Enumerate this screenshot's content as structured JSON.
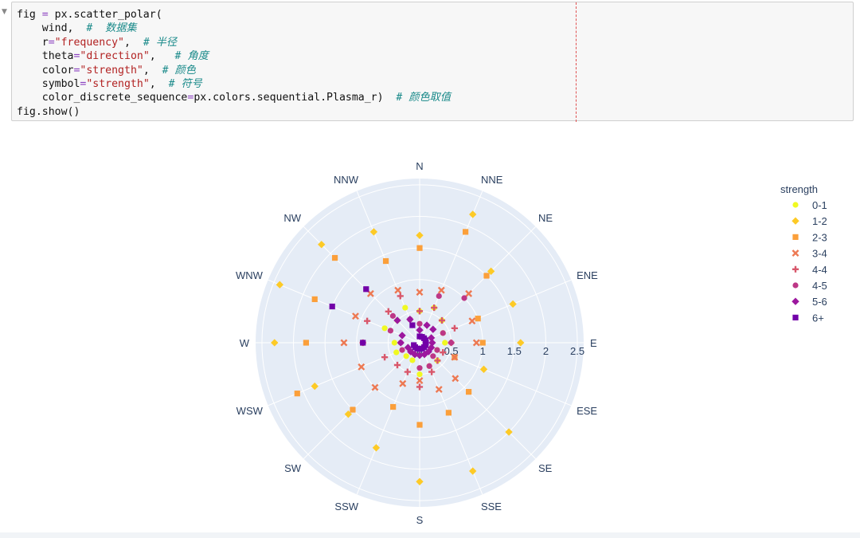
{
  "code": {
    "gutter_icon": "collapse-triangle-icon",
    "lines": [
      [
        {
          "t": "fig ",
          "k": ""
        },
        {
          "t": "=",
          "k": "o"
        },
        {
          "t": " px.scatter_polar(",
          "k": ""
        }
      ],
      [
        {
          "t": "    wind,  ",
          "k": ""
        },
        {
          "t": "#  数据集",
          "k": "c"
        }
      ],
      [
        {
          "t": "    r",
          "k": ""
        },
        {
          "t": "=",
          "k": "o"
        },
        {
          "t": "\"frequency\"",
          "k": "s"
        },
        {
          "t": ",  ",
          "k": ""
        },
        {
          "t": "# 半径",
          "k": "c"
        }
      ],
      [
        {
          "t": "    theta",
          "k": ""
        },
        {
          "t": "=",
          "k": "o"
        },
        {
          "t": "\"direction\"",
          "k": "s"
        },
        {
          "t": ",   ",
          "k": ""
        },
        {
          "t": "# 角度",
          "k": "c"
        }
      ],
      [
        {
          "t": "    color",
          "k": ""
        },
        {
          "t": "=",
          "k": "o"
        },
        {
          "t": "\"strength\"",
          "k": "s"
        },
        {
          "t": ",  ",
          "k": ""
        },
        {
          "t": "# 颜色",
          "k": "c"
        }
      ],
      [
        {
          "t": "    symbol",
          "k": ""
        },
        {
          "t": "=",
          "k": "o"
        },
        {
          "t": "\"strength\"",
          "k": "s"
        },
        {
          "t": ",  ",
          "k": ""
        },
        {
          "t": "# 符号",
          "k": "c"
        }
      ],
      [
        {
          "t": "    color_discrete_sequence",
          "k": ""
        },
        {
          "t": "=",
          "k": "o"
        },
        {
          "t": "px.colors.sequential.Plasma_r)  ",
          "k": ""
        },
        {
          "t": "# 颜色取值",
          "k": "c"
        }
      ],
      [
        {
          "t": "fig.show()",
          "k": ""
        }
      ]
    ]
  },
  "chart_data": {
    "type": "scatter",
    "subtype": "polar",
    "radial_ticks": [
      0,
      0.5,
      1,
      1.5,
      2,
      2.5
    ],
    "radial_range": [
      0,
      2.6
    ],
    "directions": [
      "N",
      "NNE",
      "NE",
      "ENE",
      "E",
      "ESE",
      "SE",
      "SSE",
      "S",
      "SSW",
      "SW",
      "WSW",
      "W",
      "WNW",
      "NW",
      "NNW"
    ],
    "legend": {
      "title": "strength",
      "placement": "right"
    },
    "colors": {
      "polar_bg": "#e5ecf6",
      "grid": "#ffffff",
      "text": "#2a3f5f"
    },
    "series": [
      {
        "name": "0-1",
        "symbol": "circle",
        "color": "#f0f921",
        "r": [
          0.5,
          0.6,
          0.5,
          0.4,
          0.4,
          0.3,
          0.4,
          0.4,
          0.5,
          0.3,
          0.3,
          0.4,
          0.4,
          0.6,
          0.5,
          0.6
        ]
      },
      {
        "name": "1-2",
        "symbol": "diamond",
        "color": "#fdca26",
        "r": [
          1.7,
          2.2,
          1.6,
          1.6,
          1.6,
          1.1,
          2.0,
          2.2,
          2.2,
          1.8,
          1.6,
          1.8,
          2.3,
          2.4,
          2.2,
          1.9
        ]
      },
      {
        "name": "2-3",
        "symbol": "square",
        "color": "#fb9f3a",
        "r": [
          1.5,
          1.9,
          1.5,
          1.0,
          1.0,
          0.6,
          1.1,
          1.2,
          1.3,
          1.1,
          1.5,
          2.1,
          1.8,
          1.8,
          1.9,
          1.4
        ]
      },
      {
        "name": "3-4",
        "symbol": "x",
        "color": "#ed7953",
        "r": [
          0.8,
          0.9,
          1.1,
          0.9,
          0.9,
          0.6,
          0.8,
          0.8,
          0.6,
          0.7,
          1.0,
          1.0,
          1.2,
          1.1,
          1.1,
          0.9
        ]
      },
      {
        "name": "4-4",
        "symbol": "cross",
        "color": "#d8576b",
        "r": [
          0.5,
          0.6,
          0.5,
          0.6,
          0.5,
          0.4,
          0.4,
          0.5,
          0.7,
          0.5,
          0.5,
          0.6,
          0.9,
          0.9,
          0.7,
          0.8
        ]
      },
      {
        "name": "4-5",
        "symbol": "circle",
        "color": "#bd3786",
        "r": [
          0.3,
          0.8,
          1.0,
          0.4,
          0.5,
          0.3,
          0.3,
          0.4,
          0.4,
          0.2,
          0.2,
          0.3,
          0.3,
          0.5,
          0.6,
          0.4
        ]
      },
      {
        "name": "5-6",
        "symbol": "diamond",
        "color": "#9c179e",
        "r": [
          0.2,
          0.3,
          0.3,
          0.2,
          0.2,
          0.2,
          0.2,
          0.2,
          0.2,
          0.2,
          0.2,
          0.2,
          0.3,
          0.3,
          0.5,
          0.4
        ]
      },
      {
        "name": "6+",
        "symbol": "square",
        "color": "#7201a8",
        "r": [
          0.1,
          0.1,
          0.1,
          0.1,
          0.1,
          0.1,
          0.1,
          0.1,
          0.1,
          0.1,
          0.1,
          0.1,
          0.9,
          1.5,
          1.2,
          0.3
        ]
      }
    ]
  }
}
